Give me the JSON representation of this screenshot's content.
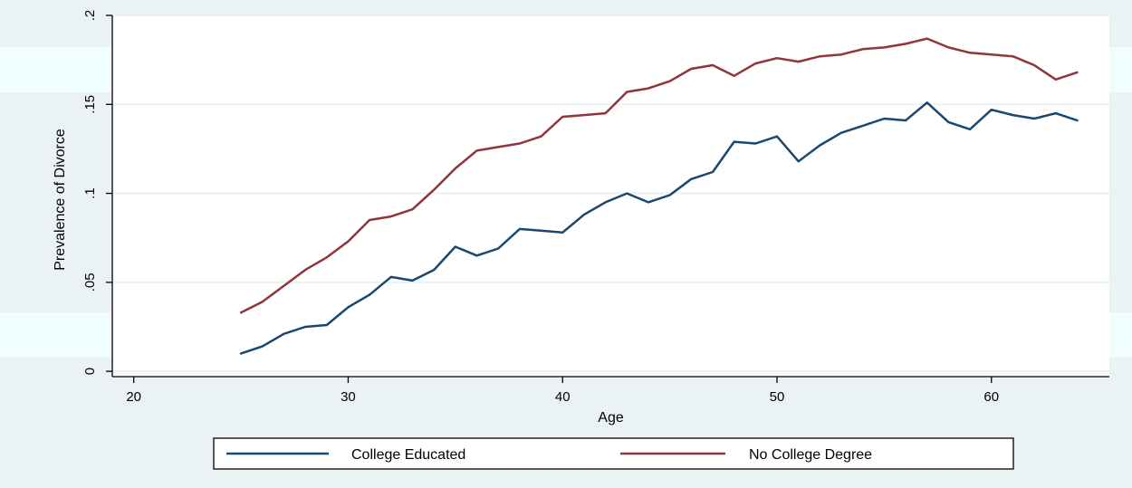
{
  "chart_data": {
    "type": "line",
    "xlabel": "Age",
    "ylabel": "Prevalence of Divorce",
    "xlim": [
      19,
      65.5
    ],
    "ylim": [
      -0.003,
      0.2
    ],
    "xticks": [
      20,
      30,
      40,
      50,
      60
    ],
    "xtick_labels": [
      "20",
      "30",
      "40",
      "50",
      "60"
    ],
    "yticks": [
      0,
      0.05,
      0.1,
      0.15,
      0.2
    ],
    "ytick_labels": [
      "0",
      ".05",
      ".1",
      ".15",
      ".2"
    ],
    "grid": true,
    "legend_position": "bottom",
    "colors": {
      "outer_background": "#eaf2f3",
      "band_highlight": "#f0fefe",
      "plot_background": "#ffffff",
      "grid": "#eaf2f3",
      "axis": "#000000"
    },
    "x": [
      25,
      26,
      27,
      28,
      29,
      30,
      31,
      32,
      33,
      34,
      35,
      36,
      37,
      38,
      39,
      40,
      41,
      42,
      43,
      44,
      45,
      46,
      47,
      48,
      49,
      50,
      51,
      52,
      53,
      54,
      55,
      56,
      57,
      58,
      59,
      60,
      61,
      62,
      63,
      64
    ],
    "series": [
      {
        "name": "College Educated",
        "color": "#1a476f",
        "values": [
          0.01,
          0.014,
          0.021,
          0.025,
          0.026,
          0.036,
          0.043,
          0.053,
          0.051,
          0.057,
          0.07,
          0.065,
          0.069,
          0.08,
          0.079,
          0.078,
          0.088,
          0.095,
          0.1,
          0.095,
          0.099,
          0.108,
          0.112,
          0.129,
          0.128,
          0.132,
          0.118,
          0.127,
          0.134,
          0.138,
          0.142,
          0.141,
          0.151,
          0.14,
          0.136,
          0.147,
          0.144,
          0.142,
          0.145,
          0.141
        ]
      },
      {
        "name": "No College Degree",
        "color": "#90353b",
        "values": [
          0.033,
          0.039,
          0.048,
          0.057,
          0.064,
          0.073,
          0.085,
          0.087,
          0.091,
          0.102,
          0.114,
          0.124,
          0.126,
          0.128,
          0.132,
          0.143,
          0.144,
          0.145,
          0.157,
          0.159,
          0.163,
          0.17,
          0.172,
          0.166,
          0.173,
          0.176,
          0.174,
          0.177,
          0.178,
          0.181,
          0.182,
          0.184,
          0.187,
          0.182,
          0.179,
          0.178,
          0.177,
          0.172,
          0.164,
          0.168
        ]
      }
    ]
  }
}
